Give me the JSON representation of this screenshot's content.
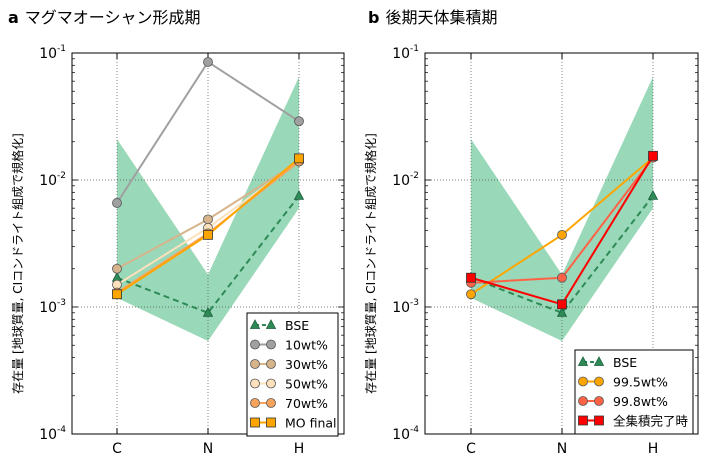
{
  "chart_data": [
    {
      "type": "line",
      "panel_letter": "a",
      "title": "マグマオーシャン形成期",
      "ylabel": "存在量 [地球質量, CIコンドライト組成で規格化]",
      "xlabel": "",
      "categories": [
        "C",
        "N",
        "H"
      ],
      "yscale": "log",
      "ylim": [
        0.0001,
        0.1
      ],
      "ytick_labels": [
        [
          "10",
          "-4"
        ],
        [
          "10",
          "-3"
        ],
        [
          "10",
          "-2"
        ],
        [
          "10",
          "-1"
        ]
      ],
      "grid": true,
      "legend_position": "bottom-right",
      "band": {
        "color": "#99d8b8",
        "lower": [
          0.00118,
          0.00054,
          0.006
        ],
        "upper": [
          0.021,
          0.0018,
          0.065
        ]
      },
      "series": [
        {
          "name": "BSE",
          "values": [
            0.0017,
            0.0009,
            0.0075
          ],
          "color": "#2e8b57",
          "marker": "triangle",
          "dashed": true
        },
        {
          "name": "10wt%",
          "values": [
            0.0066,
            0.085,
            0.029
          ],
          "color": "#a0a0a0",
          "marker": "circle"
        },
        {
          "name": "30wt%",
          "values": [
            0.002,
            0.0049,
            0.014
          ],
          "color": "#d6b48c",
          "marker": "circle"
        },
        {
          "name": "50wt%",
          "values": [
            0.0015,
            0.0042,
            0.014
          ],
          "color": "#fde0bc",
          "marker": "circle"
        },
        {
          "name": "70wt%",
          "values": [
            0.0013,
            0.0038,
            0.014
          ],
          "color": "#f8a35c",
          "marker": "circle"
        },
        {
          "name": "MO final",
          "values": [
            0.00126,
            0.0037,
            0.0148
          ],
          "color": "#ffa500",
          "marker": "square"
        }
      ]
    },
    {
      "type": "line",
      "panel_letter": "b",
      "title": "後期天体集積期",
      "ylabel": "存在量 [地球質量, CIコンドライト組成で規格化]",
      "xlabel": "",
      "categories": [
        "C",
        "N",
        "H"
      ],
      "yscale": "log",
      "ylim": [
        0.0001,
        0.1
      ],
      "ytick_labels": [
        [
          "10",
          "-4"
        ],
        [
          "10",
          "-3"
        ],
        [
          "10",
          "-2"
        ],
        [
          "10",
          "-1"
        ]
      ],
      "grid": true,
      "legend_position": "bottom-right",
      "band": {
        "color": "#99d8b8",
        "lower": [
          0.00118,
          0.00054,
          0.006
        ],
        "upper": [
          0.021,
          0.0018,
          0.065
        ]
      },
      "series": [
        {
          "name": "BSE",
          "values": [
            0.0017,
            0.0009,
            0.0075
          ],
          "color": "#2e8b57",
          "marker": "triangle",
          "dashed": true
        },
        {
          "name": "99.5wt%",
          "values": [
            0.00126,
            0.0037,
            0.015
          ],
          "color": "#ffa500",
          "marker": "circle"
        },
        {
          "name": "99.8wt%",
          "values": [
            0.00155,
            0.0017,
            0.015
          ],
          "color": "#ff6347",
          "marker": "circle"
        },
        {
          "name": "全集積完了時",
          "values": [
            0.0017,
            0.00105,
            0.0155
          ],
          "color": "#ff0000",
          "marker": "square"
        }
      ]
    }
  ]
}
